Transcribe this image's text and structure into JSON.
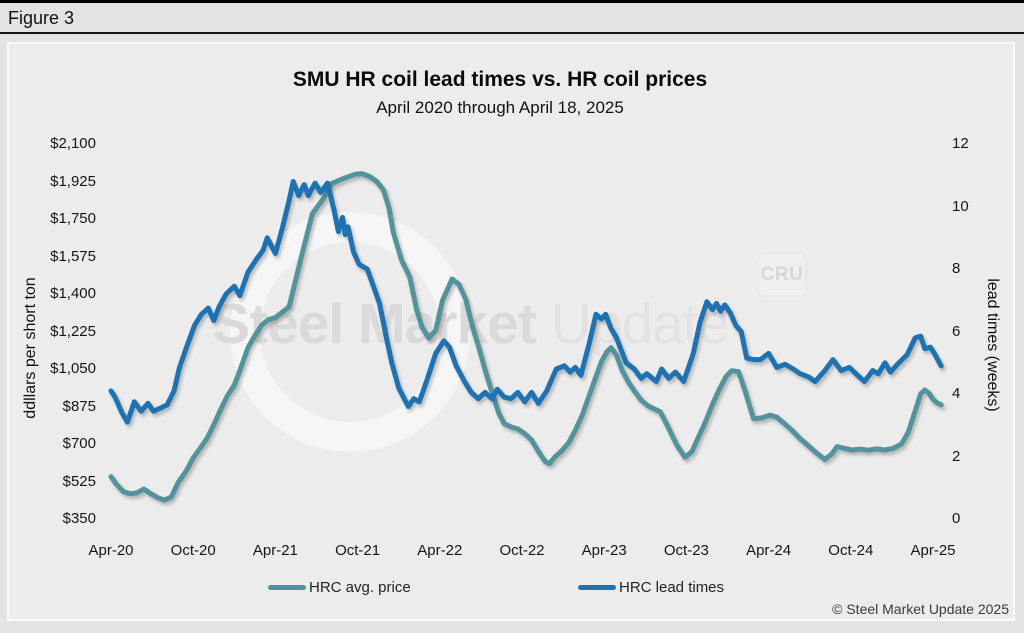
{
  "figure_label": "Figure 3",
  "chart": {
    "title": "SMU HR coil lead times vs. HR coil prices",
    "subtitle": "April 2020 through April 18, 2025",
    "left_axis": {
      "title": "ddllars per short ton",
      "ticks": [
        "$2,100",
        "$1,925",
        "$1,750",
        "$1,575",
        "$1,400",
        "$1,225",
        "$1,050",
        "$875",
        "$700",
        "$525",
        "$350"
      ]
    },
    "right_axis": {
      "title": "lead times (weeks)",
      "ticks": [
        "12",
        "10",
        "8",
        "6",
        "4",
        "2",
        "0"
      ]
    },
    "x_axis": {
      "ticks": [
        "Apr-20",
        "Oct-20",
        "Apr-21",
        "Oct-21",
        "Apr-22",
        "Oct-22",
        "Apr-23",
        "Oct-23",
        "Apr-24",
        "Oct-24",
        "Apr-25"
      ]
    },
    "legend": [
      {
        "label": "HRC avg. price",
        "color": "#53949c"
      },
      {
        "label": "HRC lead times",
        "color": "#1d72b4"
      }
    ],
    "watermark": {
      "bold": "Steel Market",
      "light": " Update",
      "badge": "CRU"
    },
    "copyright": "© Steel Market Update 2025"
  },
  "chart_data": {
    "type": "line",
    "title": "SMU HR coil lead times vs. HR coil prices",
    "subtitle": "April 2020 through April 18, 2025",
    "x_unit": "months since April 2020",
    "x_tick_months": [
      0,
      6,
      12,
      18,
      24,
      30,
      36,
      42,
      48,
      54,
      60
    ],
    "x_tick_labels": [
      "Apr-20",
      "Oct-20",
      "Apr-21",
      "Oct-21",
      "Apr-22",
      "Oct-22",
      "Apr-23",
      "Oct-23",
      "Apr-24",
      "Oct-24",
      "Apr-25"
    ],
    "left_ylabel": "ddllars per short ton",
    "right_ylabel": "lead times (weeks)",
    "left_ylim": [
      350,
      2100
    ],
    "right_ylim": [
      0,
      12
    ],
    "grid": false,
    "legend_position": "bottom",
    "series": [
      {
        "name": "HRC avg. price",
        "axis": "left",
        "unit": "$/short ton",
        "color": "#53949c",
        "points": [
          [
            0,
            548
          ],
          [
            0.4,
            512
          ],
          [
            0.9,
            478
          ],
          [
            1.4,
            468
          ],
          [
            1.9,
            472
          ],
          [
            2.4,
            490
          ],
          [
            2.9,
            468
          ],
          [
            3.4,
            450
          ],
          [
            3.9,
            438
          ],
          [
            4.4,
            452
          ],
          [
            4.9,
            520
          ],
          [
            5.5,
            575
          ],
          [
            6,
            635
          ],
          [
            6.5,
            680
          ],
          [
            7,
            725
          ],
          [
            7.5,
            790
          ],
          [
            8,
            860
          ],
          [
            8.5,
            925
          ],
          [
            9,
            975
          ],
          [
            9.5,
            1060
          ],
          [
            10,
            1150
          ],
          [
            10.5,
            1205
          ],
          [
            11,
            1255
          ],
          [
            11.5,
            1280
          ],
          [
            12,
            1290
          ],
          [
            13,
            1340
          ],
          [
            13.9,
            1575
          ],
          [
            14.7,
            1775
          ],
          [
            15.5,
            1845
          ],
          [
            16.1,
            1915
          ],
          [
            17,
            1940
          ],
          [
            17.8,
            1958
          ],
          [
            18.3,
            1962
          ],
          [
            18.9,
            1948
          ],
          [
            19.4,
            1925
          ],
          [
            19.9,
            1885
          ],
          [
            20.3,
            1800
          ],
          [
            20.6,
            1690
          ],
          [
            21.2,
            1560
          ],
          [
            21.8,
            1480
          ],
          [
            22.3,
            1330
          ],
          [
            22.7,
            1245
          ],
          [
            23.2,
            1195
          ],
          [
            23.7,
            1230
          ],
          [
            24.2,
            1370
          ],
          [
            24.9,
            1470
          ],
          [
            25.4,
            1445
          ],
          [
            25.9,
            1375
          ],
          [
            26.4,
            1245
          ],
          [
            26.9,
            1140
          ],
          [
            27.4,
            1025
          ],
          [
            27.9,
            925
          ],
          [
            28.3,
            845
          ],
          [
            28.7,
            795
          ],
          [
            29.2,
            780
          ],
          [
            29.7,
            770
          ],
          [
            30.2,
            748
          ],
          [
            30.7,
            718
          ],
          [
            31.2,
            665
          ],
          [
            31.7,
            618
          ],
          [
            32,
            608
          ],
          [
            32.4,
            640
          ],
          [
            32.9,
            668
          ],
          [
            33.4,
            705
          ],
          [
            33.9,
            765
          ],
          [
            34.4,
            835
          ],
          [
            34.9,
            925
          ],
          [
            35.4,
            1015
          ],
          [
            35.8,
            1085
          ],
          [
            36.2,
            1130
          ],
          [
            36.5,
            1150
          ],
          [
            36.9,
            1115
          ],
          [
            37.3,
            1045
          ],
          [
            37.8,
            985
          ],
          [
            38.2,
            948
          ],
          [
            38.7,
            905
          ],
          [
            39.2,
            878
          ],
          [
            39.7,
            862
          ],
          [
            40.1,
            850
          ],
          [
            40.7,
            775
          ],
          [
            41.3,
            695
          ],
          [
            41.9,
            638
          ],
          [
            42.4,
            665
          ],
          [
            42.9,
            735
          ],
          [
            43.4,
            805
          ],
          [
            43.9,
            885
          ],
          [
            44.4,
            955
          ],
          [
            44.9,
            1015
          ],
          [
            45.3,
            1042
          ],
          [
            45.8,
            1038
          ],
          [
            46.3,
            945
          ],
          [
            46.9,
            818
          ],
          [
            47.5,
            822
          ],
          [
            48.1,
            835
          ],
          [
            48.6,
            825
          ],
          [
            49.1,
            798
          ],
          [
            49.7,
            765
          ],
          [
            50.3,
            725
          ],
          [
            50.9,
            692
          ],
          [
            51.5,
            658
          ],
          [
            52.1,
            628
          ],
          [
            52.6,
            652
          ],
          [
            53,
            688
          ],
          [
            53.5,
            680
          ],
          [
            54.1,
            672
          ],
          [
            54.7,
            676
          ],
          [
            55.3,
            671
          ],
          [
            55.9,
            677
          ],
          [
            56.5,
            672
          ],
          [
            57.1,
            680
          ],
          [
            57.7,
            700
          ],
          [
            58.2,
            755
          ],
          [
            58.7,
            855
          ],
          [
            59.1,
            935
          ],
          [
            59.4,
            952
          ],
          [
            59.7,
            938
          ],
          [
            60,
            908
          ],
          [
            60.3,
            892
          ],
          [
            60.6,
            883
          ]
        ]
      },
      {
        "name": "HRC lead times",
        "axis": "right",
        "unit": "weeks",
        "color": "#1d72b4",
        "points": [
          [
            0,
            4.1
          ],
          [
            0.3,
            3.9
          ],
          [
            0.8,
            3.4
          ],
          [
            1.2,
            3.1
          ],
          [
            1.7,
            3.75
          ],
          [
            2.2,
            3.45
          ],
          [
            2.7,
            3.7
          ],
          [
            3.1,
            3.45
          ],
          [
            3.6,
            3.55
          ],
          [
            4.1,
            3.65
          ],
          [
            4.6,
            4.1
          ],
          [
            5,
            4.85
          ],
          [
            5.6,
            5.6
          ],
          [
            6.1,
            6.2
          ],
          [
            6.6,
            6.55
          ],
          [
            7.1,
            6.75
          ],
          [
            7.5,
            6.35
          ],
          [
            7.9,
            6.8
          ],
          [
            8.4,
            7.2
          ],
          [
            9,
            7.45
          ],
          [
            9.4,
            7.15
          ],
          [
            10,
            7.9
          ],
          [
            10.6,
            8.3
          ],
          [
            11.1,
            8.6
          ],
          [
            11.4,
            9
          ],
          [
            12,
            8.5
          ],
          [
            12.5,
            9.3
          ],
          [
            13,
            10.2
          ],
          [
            13.3,
            10.8
          ],
          [
            13.7,
            10.35
          ],
          [
            14.1,
            10.7
          ],
          [
            14.4,
            10.35
          ],
          [
            14.9,
            10.75
          ],
          [
            15.3,
            10.45
          ],
          [
            15.8,
            10.75
          ],
          [
            16.3,
            9.85
          ],
          [
            16.6,
            9.2
          ],
          [
            16.9,
            9.65
          ],
          [
            17.1,
            9.1
          ],
          [
            17.3,
            9.35
          ],
          [
            17.7,
            8.55
          ],
          [
            18.1,
            8.15
          ],
          [
            18.7,
            8
          ],
          [
            19.2,
            7.4
          ],
          [
            19.6,
            6.9
          ],
          [
            20.1,
            5.8
          ],
          [
            20.5,
            5
          ],
          [
            21,
            4.2
          ],
          [
            21.7,
            3.6
          ],
          [
            22.1,
            3.85
          ],
          [
            22.5,
            3.75
          ],
          [
            23.1,
            4.5
          ],
          [
            23.7,
            5.3
          ],
          [
            24.3,
            5.7
          ],
          [
            24.7,
            5.5
          ],
          [
            25.2,
            4.9
          ],
          [
            25.8,
            4.4
          ],
          [
            26.3,
            4.05
          ],
          [
            26.8,
            3.85
          ],
          [
            27.3,
            4.05
          ],
          [
            27.8,
            3.85
          ],
          [
            28.2,
            4.15
          ],
          [
            28.7,
            3.9
          ],
          [
            29.2,
            3.85
          ],
          [
            29.7,
            4.05
          ],
          [
            30.2,
            3.75
          ],
          [
            30.7,
            4.05
          ],
          [
            31.2,
            3.7
          ],
          [
            31.8,
            4.1
          ],
          [
            32.5,
            4.8
          ],
          [
            33.1,
            4.9
          ],
          [
            33.5,
            4.7
          ],
          [
            33.9,
            4.85
          ],
          [
            34.3,
            4.6
          ],
          [
            34.9,
            5.6
          ],
          [
            35.4,
            6.55
          ],
          [
            35.8,
            6.4
          ],
          [
            36.1,
            6.55
          ],
          [
            36.5,
            6.1
          ],
          [
            36.9,
            5.8
          ],
          [
            37.6,
            5
          ],
          [
            38.2,
            4.8
          ],
          [
            38.7,
            4.5
          ],
          [
            39.1,
            4.65
          ],
          [
            39.8,
            4.4
          ],
          [
            40.2,
            4.8
          ],
          [
            40.7,
            4.5
          ],
          [
            41.2,
            4.7
          ],
          [
            41.8,
            4.4
          ],
          [
            42.5,
            5.3
          ],
          [
            43,
            6.3
          ],
          [
            43.5,
            6.95
          ],
          [
            43.9,
            6.7
          ],
          [
            44.2,
            6.9
          ],
          [
            44.5,
            6.65
          ],
          [
            44.8,
            6.85
          ],
          [
            45.2,
            6.6
          ],
          [
            45.6,
            6.2
          ],
          [
            46,
            6
          ],
          [
            46.4,
            5.15
          ],
          [
            46.9,
            5.1
          ],
          [
            47.4,
            5.1
          ],
          [
            48,
            5.3
          ],
          [
            48.6,
            4.85
          ],
          [
            49.2,
            4.95
          ],
          [
            49.8,
            4.8
          ],
          [
            50.3,
            4.65
          ],
          [
            50.9,
            4.55
          ],
          [
            51.4,
            4.4
          ],
          [
            52.1,
            4.75
          ],
          [
            52.7,
            5.1
          ],
          [
            53.3,
            4.75
          ],
          [
            53.9,
            4.85
          ],
          [
            54.5,
            4.6
          ],
          [
            55,
            4.4
          ],
          [
            55.6,
            4.75
          ],
          [
            56,
            4.65
          ],
          [
            56.5,
            5
          ],
          [
            56.9,
            4.7
          ],
          [
            57.4,
            4.95
          ],
          [
            58.1,
            5.25
          ],
          [
            58.7,
            5.8
          ],
          [
            59.1,
            5.85
          ],
          [
            59.4,
            5.45
          ],
          [
            59.8,
            5.5
          ],
          [
            60.1,
            5.3
          ],
          [
            60.6,
            4.9
          ]
        ]
      }
    ]
  }
}
